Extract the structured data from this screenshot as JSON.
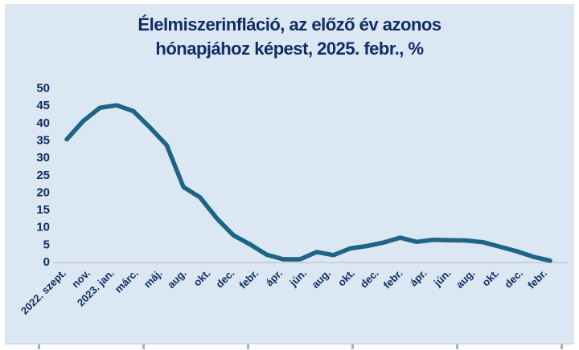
{
  "title": {
    "line1": "Élelmiszerinfláció, az előző év azonos",
    "line2": "hónapjához képest, 2025. febr., %"
  },
  "colors": {
    "panel_background": "#dbe7f3",
    "title_text": "#0f2d63",
    "axis_text": "#0f2d63",
    "line": "#1e6484",
    "zero_gridline": "#c9cfd6",
    "footer_tick": "#aab0b7"
  },
  "chart_data": {
    "type": "line",
    "title": "Élelmiszerinfláció, az előző év azonos hónapjához képest, 2025. febr., %",
    "xlabel": "",
    "ylabel": "",
    "ylim": [
      0,
      50
    ],
    "y_ticks": [
      "50",
      "45",
      "40",
      "35",
      "30",
      "25",
      "20",
      "15",
      "10",
      "5",
      "0"
    ],
    "grid": "zero-line-only",
    "legend": "none",
    "categories": [
      "2022. szept.",
      "2022. okt.",
      "2022. nov.",
      "2022. dec.",
      "2023. jan.",
      "2023. febr.",
      "2023. márc.",
      "2023. ápr.",
      "2023. máj.",
      "2023. jún.",
      "2023. júl.",
      "2023. aug.",
      "2023. szept.",
      "2023. okt.",
      "2023. nov.",
      "2023. dec.",
      "2024. jan.",
      "2024. febr.",
      "2024. márc.",
      "2024. ápr.",
      "2024. máj.",
      "2024. jún.",
      "2024. júl.",
      "2024. aug.",
      "2024. szept.",
      "2024. okt.",
      "2024. nov.",
      "2024. dec.",
      "2025. jan.",
      "2025. febr."
    ],
    "values": [
      35.2,
      40.5,
      44.3,
      45.0,
      43.3,
      38.6,
      33.5,
      21.5,
      18.5,
      12.5,
      7.6,
      5.0,
      2.0,
      0.7,
      0.7,
      2.8,
      1.9,
      3.8,
      4.5,
      5.5,
      6.9,
      5.7,
      6.3,
      6.2,
      6.1,
      5.6,
      4.3,
      3.0,
      1.4,
      0.3
    ],
    "x_axis_labels_shown": [
      "2022. szept.",
      "nov.",
      "2023. jan.",
      "márc.",
      "máj.",
      "aug.",
      "okt.",
      "dec.",
      "febr.",
      "ápr.",
      "jún.",
      "aug.",
      "okt.",
      "dec.",
      "febr.",
      "ápr.",
      "jún.",
      "aug.",
      "okt.",
      "dec.",
      "febr."
    ]
  }
}
